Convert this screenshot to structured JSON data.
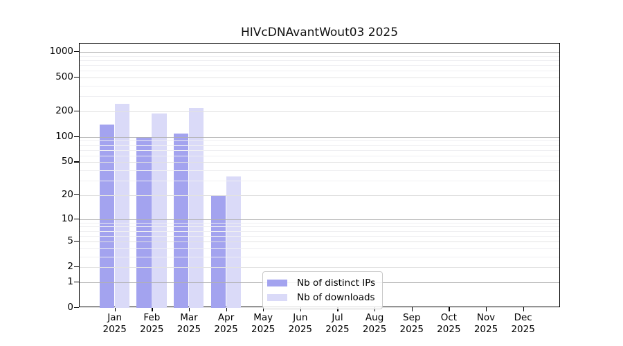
{
  "title": "HIVcDNAvantWout03 2025",
  "legend": {
    "items": [
      {
        "label": "Nb of distinct IPs",
        "color": "#a3a3ef"
      },
      {
        "label": "Nb of downloads",
        "color": "#dadaf8"
      }
    ]
  },
  "x_axis": {
    "months": [
      "Jan",
      "Feb",
      "Mar",
      "Apr",
      "May",
      "Jun",
      "Jul",
      "Aug",
      "Sep",
      "Oct",
      "Nov",
      "Dec"
    ],
    "year": "2025"
  },
  "chart_data": {
    "type": "bar",
    "title": "HIVcDNAvantWout03 2025",
    "categories": [
      "Jan 2025",
      "Feb 2025",
      "Mar 2025",
      "Apr 2025",
      "May 2025",
      "Jun 2025",
      "Jul 2025",
      "Aug 2025",
      "Sep 2025",
      "Oct 2025",
      "Nov 2025",
      "Dec 2025"
    ],
    "series": [
      {
        "name": "Nb of distinct IPs",
        "color": "#a3a3ef",
        "values": [
          140,
          100,
          110,
          20,
          0,
          0,
          0,
          0,
          0,
          0,
          0,
          0
        ]
      },
      {
        "name": "Nb of downloads",
        "color": "#dadaf8",
        "values": [
          245,
          190,
          220,
          34,
          0,
          0,
          0,
          0,
          0,
          0,
          0,
          0
        ]
      }
    ],
    "xlabel": "",
    "ylabel": "",
    "yscale": "log10(1+y)",
    "ylim": [
      0,
      1250
    ],
    "yticks": [
      0,
      1,
      2,
      5,
      10,
      20,
      50,
      100,
      200,
      500,
      1000
    ],
    "grid": true,
    "legend_position": "inside-bottom-left-of-center"
  }
}
